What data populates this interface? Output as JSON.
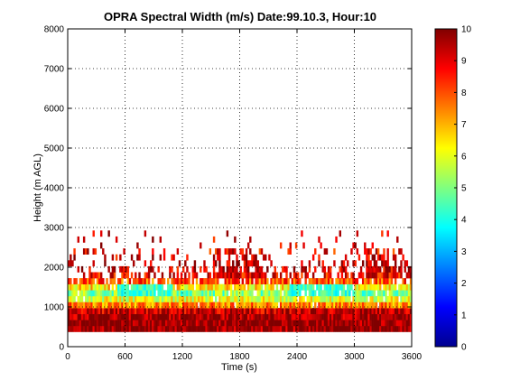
{
  "chart_data": {
    "type": "heatmap",
    "title": "OPRA Spectral Width (m/s)  Date:99.10.3, Hour:10",
    "xlabel": "Time (s)",
    "ylabel": "Height (m AGL)",
    "xlim": [
      0,
      3600
    ],
    "ylim": [
      0,
      8000
    ],
    "x_ticks": [
      0,
      600,
      1200,
      1800,
      2400,
      3000,
      3600
    ],
    "y_ticks": [
      0,
      1000,
      2000,
      3000,
      4000,
      5000,
      6000,
      7000,
      8000
    ],
    "grid": true,
    "colormap": "jet",
    "colorbar": {
      "range": [
        0,
        10
      ],
      "ticks": [
        0,
        1,
        2,
        3,
        4,
        5,
        6,
        7,
        8,
        9,
        10
      ]
    },
    "time_step_s": 20,
    "height_layers": [
      {
        "height_m": 450,
        "value": 9.8,
        "coverage": 1.0
      },
      {
        "height_m": 600,
        "value": 9.9,
        "coverage": 1.0
      },
      {
        "height_m": 750,
        "value": 9.7,
        "coverage": 1.0
      },
      {
        "height_m": 900,
        "value": 9.3,
        "coverage": 1.0
      },
      {
        "height_m": 1050,
        "value": 7.5,
        "coverage": 0.98
      },
      {
        "height_m": 1200,
        "value": 6.0,
        "coverage": 0.95
      },
      {
        "height_m": 1350,
        "value": 5.0,
        "coverage": 0.92
      },
      {
        "height_m": 1500,
        "value": 6.5,
        "coverage": 0.88
      },
      {
        "height_m": 1650,
        "value": 8.0,
        "coverage": 0.8
      },
      {
        "height_m": 1800,
        "value": 8.8,
        "coverage": 0.55
      },
      {
        "height_m": 1950,
        "value": 9.2,
        "coverage": 0.35
      },
      {
        "height_m": 2100,
        "value": 9.3,
        "coverage": 0.18
      },
      {
        "height_m": 2250,
        "value": 9.2,
        "coverage": 0.12
      },
      {
        "height_m": 2400,
        "value": 8.8,
        "coverage": 0.1
      },
      {
        "height_m": 2550,
        "value": 9.0,
        "coverage": 0.06
      },
      {
        "height_m": 2700,
        "value": 9.0,
        "coverage": 0.04
      },
      {
        "height_m": 2850,
        "value": 9.3,
        "coverage": 0.03
      }
    ]
  }
}
